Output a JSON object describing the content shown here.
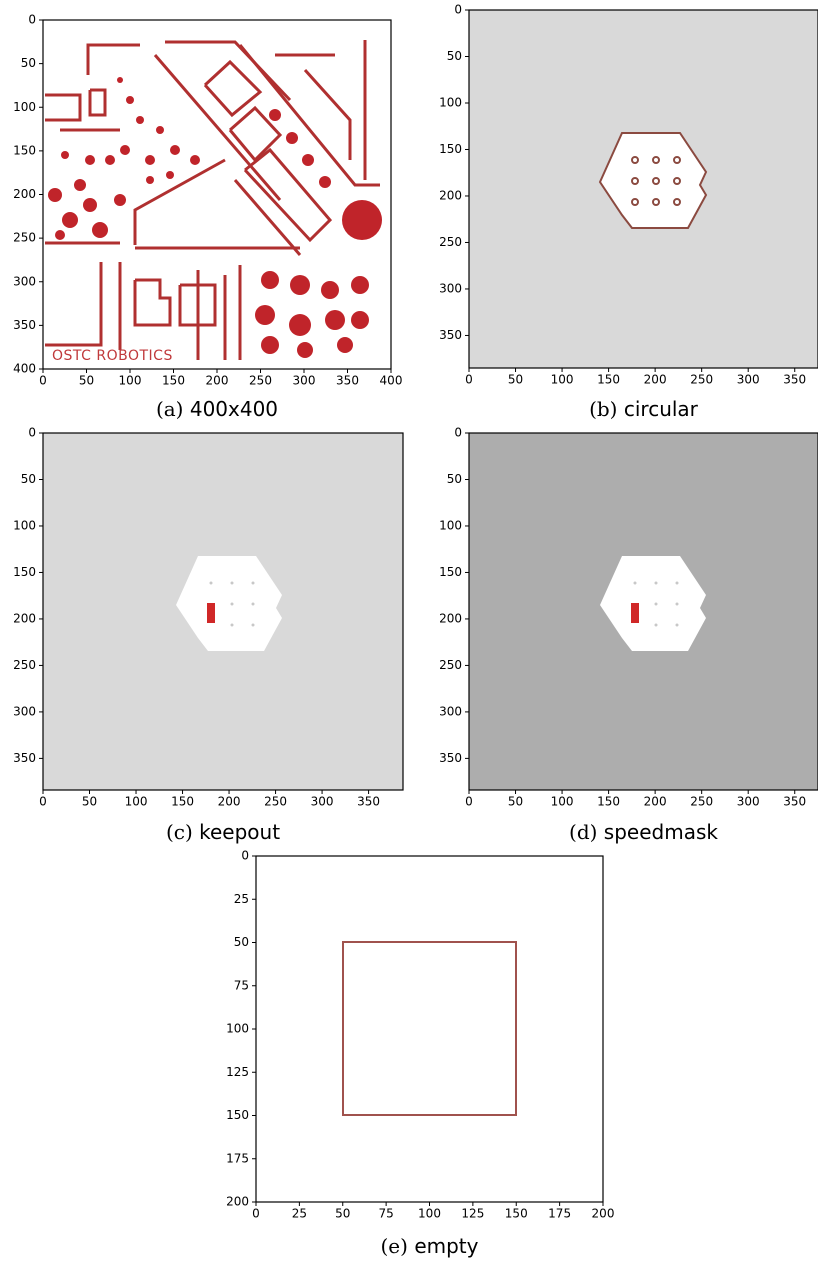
{
  "chart_data": [
    {
      "type": "image",
      "label": "(a)",
      "caption": "400x400",
      "image_text": "OSTC ROBOTICS",
      "xlim": [
        0,
        400
      ],
      "ylim": [
        400,
        0
      ],
      "xticks": [
        0,
        50,
        100,
        150,
        200,
        250,
        300,
        350,
        400
      ],
      "yticks": [
        0,
        50,
        100,
        150,
        200,
        250,
        300,
        350,
        400
      ]
    },
    {
      "type": "image",
      "label": "(b)",
      "caption": "circular",
      "xlim": [
        0,
        375
      ],
      "ylim": [
        385,
        0
      ],
      "xticks": [
        0,
        50,
        100,
        150,
        200,
        250,
        300,
        350
      ],
      "yticks": [
        0,
        50,
        100,
        150,
        200,
        250,
        300,
        350
      ]
    },
    {
      "type": "image",
      "label": "(c)",
      "caption": "keepout",
      "xlim": [
        0,
        387
      ],
      "ylim": [
        384,
        0
      ],
      "xticks": [
        0,
        50,
        100,
        150,
        200,
        250,
        300,
        350
      ],
      "yticks": [
        0,
        50,
        100,
        150,
        200,
        250,
        300,
        350
      ]
    },
    {
      "type": "image",
      "label": "(d)",
      "caption": "speedmask",
      "xlim": [
        0,
        375
      ],
      "ylim": [
        384,
        0
      ],
      "xticks": [
        0,
        50,
        100,
        150,
        200,
        250,
        300,
        350
      ],
      "yticks": [
        0,
        50,
        100,
        150,
        200,
        250,
        300,
        350
      ]
    },
    {
      "type": "image",
      "label": "(e)",
      "caption": "empty",
      "xlim": [
        0,
        200
      ],
      "ylim": [
        200,
        0
      ],
      "xticks": [
        0,
        25,
        50,
        75,
        100,
        125,
        150,
        175,
        200
      ],
      "yticks": [
        0,
        25,
        50,
        75,
        100,
        125,
        150,
        175,
        200
      ]
    }
  ]
}
